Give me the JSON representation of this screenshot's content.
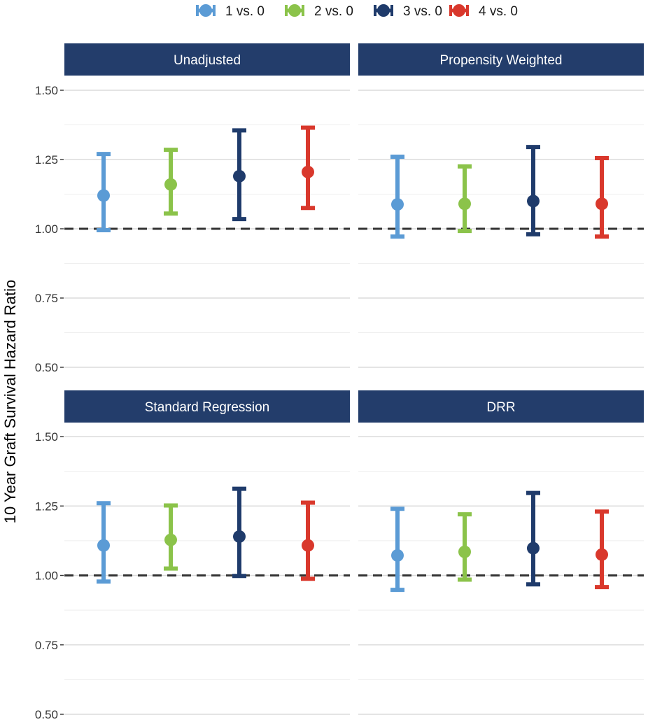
{
  "chart_data": {
    "type": "errorbar",
    "title": "",
    "ylabel": "10 Year Graft Survival Hazard Ratio",
    "xlabel": "",
    "ylim": [
      0.5,
      1.5
    ],
    "y_ticks": [
      "0.50",
      "0.75",
      "1.00",
      "1.25",
      "1.50"
    ],
    "reference_line": 1.0,
    "legend_position": "top",
    "grid": true,
    "series": [
      {
        "name": "1 vs. 0",
        "color": "#5b9bd5"
      },
      {
        "name": "2 vs. 0",
        "color": "#8bc34a"
      },
      {
        "name": "3 vs. 0",
        "color": "#1f3b6b"
      },
      {
        "name": "4 vs. 0",
        "color": "#d9382c"
      }
    ],
    "panels": [
      {
        "title": "Unadjusted",
        "points": [
          {
            "estimate": 1.12,
            "lower": 0.995,
            "upper": 1.27
          },
          {
            "estimate": 1.16,
            "lower": 1.055,
            "upper": 1.285
          },
          {
            "estimate": 1.19,
            "lower": 1.035,
            "upper": 1.355
          },
          {
            "estimate": 1.205,
            "lower": 1.075,
            "upper": 1.365
          }
        ]
      },
      {
        "title": "Propensity Weighted",
        "points": [
          {
            "estimate": 1.088,
            "lower": 0.972,
            "upper": 1.26
          },
          {
            "estimate": 1.09,
            "lower": 0.992,
            "upper": 1.225
          },
          {
            "estimate": 1.1,
            "lower": 0.98,
            "upper": 1.295
          },
          {
            "estimate": 1.09,
            "lower": 0.972,
            "upper": 1.255
          }
        ]
      },
      {
        "title": "Standard Regression",
        "points": [
          {
            "estimate": 1.108,
            "lower": 0.978,
            "upper": 1.26
          },
          {
            "estimate": 1.128,
            "lower": 1.025,
            "upper": 1.252
          },
          {
            "estimate": 1.14,
            "lower": 0.998,
            "upper": 1.312
          },
          {
            "estimate": 1.108,
            "lower": 0.988,
            "upper": 1.262
          }
        ]
      },
      {
        "title": "DRR",
        "points": [
          {
            "estimate": 1.072,
            "lower": 0.948,
            "upper": 1.24
          },
          {
            "estimate": 1.085,
            "lower": 0.985,
            "upper": 1.22
          },
          {
            "estimate": 1.098,
            "lower": 0.968,
            "upper": 1.297
          },
          {
            "estimate": 1.075,
            "lower": 0.958,
            "upper": 1.23
          }
        ]
      }
    ]
  }
}
